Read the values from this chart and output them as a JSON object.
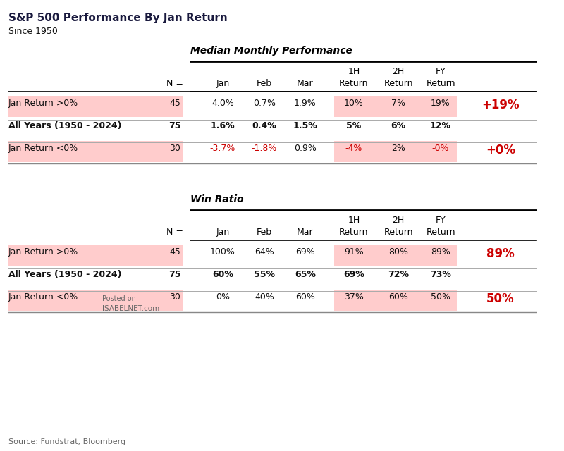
{
  "title": "S&P 500 Performance By Jan Return",
  "subtitle": "Since 1950",
  "source": "Source: Fundstrat, Bloomberg",
  "section1_title": "Median Monthly Performance",
  "section2_title": "Win Ratio",
  "rows_median": [
    {
      "label": "Jan Return >0%",
      "n": "45",
      "jan": "4.0%",
      "feb": "0.7%",
      "mar": "1.9%",
      "1h": "10%",
      "2h": "7%",
      "fy": "19%",
      "highlight": true,
      "badge": "+19%",
      "badge_neg": false
    },
    {
      "label": "All Years (1950 - 2024)",
      "n": "75",
      "jan": "1.6%",
      "feb": "0.4%",
      "mar": "1.5%",
      "1h": "5%",
      "2h": "6%",
      "fy": "12%",
      "highlight": false,
      "badge": "",
      "badge_neg": false
    },
    {
      "label": "Jan Return <0%",
      "n": "30",
      "jan": "-3.7%",
      "feb": "-1.8%",
      "mar": "0.9%",
      "1h": "-4%",
      "2h": "2%",
      "fy": "-0%",
      "highlight": true,
      "badge": "+0%",
      "badge_neg": true
    }
  ],
  "rows_winratio": [
    {
      "label": "Jan Return >0%",
      "n": "45",
      "jan": "100%",
      "feb": "64%",
      "mar": "69%",
      "1h": "91%",
      "2h": "80%",
      "fy": "89%",
      "highlight": true,
      "badge": "89%",
      "badge_neg": false
    },
    {
      "label": "All Years (1950 - 2024)",
      "n": "75",
      "jan": "60%",
      "feb": "55%",
      "mar": "65%",
      "1h": "69%",
      "2h": "72%",
      "fy": "73%",
      "highlight": false,
      "badge": "",
      "badge_neg": false
    },
    {
      "label": "Jan Return <0%",
      "n": "30",
      "jan": "0%",
      "feb": "40%",
      "mar": "60%",
      "1h": "37%",
      "2h": "60%",
      "fy": "50%",
      "highlight": true,
      "badge": "50%",
      "badge_neg": true
    }
  ],
  "pink_light": "#FFCCCC",
  "red_text": "#CC0000",
  "dark_navy": "#1a1a3e",
  "black": "#111111",
  "gray_text": "#666666",
  "bg_color": "#FFFFFF"
}
